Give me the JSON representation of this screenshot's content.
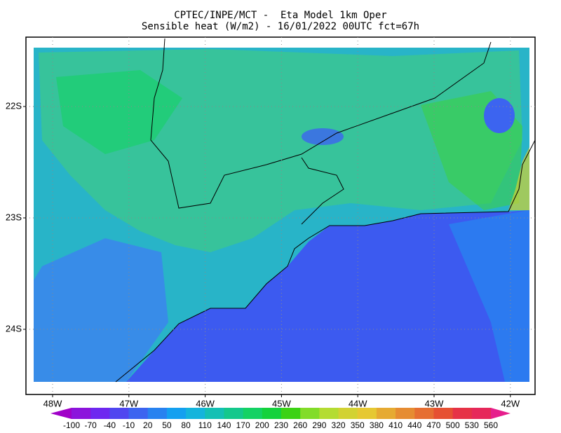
{
  "header": {
    "line1": "CPTEC/INPE/MCT -  Eta Model 1km Oper",
    "line2": "Sensible heat (W/m2) - 16/01/2022 00UTC fct=67h"
  },
  "map": {
    "lat_labels": [
      "22S",
      "23S",
      "24S"
    ],
    "lon_labels": [
      "48W",
      "47W",
      "46W",
      "45W",
      "44W",
      "43W",
      "42W"
    ]
  },
  "colorbar": {
    "levels": [
      -100,
      -70,
      -40,
      -10,
      20,
      50,
      80,
      110,
      140,
      170,
      200,
      230,
      260,
      290,
      320,
      350,
      380,
      410,
      440,
      470,
      500,
      530,
      560
    ],
    "colors": [
      "#a000c8",
      "#8c14dc",
      "#6e28f0",
      "#5046f0",
      "#3c64f0",
      "#2882f0",
      "#14a0f0",
      "#14b4dc",
      "#14c0b4",
      "#14c88c",
      "#14d264",
      "#14d23c",
      "#3cd214",
      "#82dc28",
      "#b4dc32",
      "#d2d232",
      "#e6c832",
      "#e6aa32",
      "#e68c32",
      "#e66e32",
      "#e65032",
      "#e63246",
      "#e6285a",
      "#e61e8c"
    ]
  }
}
